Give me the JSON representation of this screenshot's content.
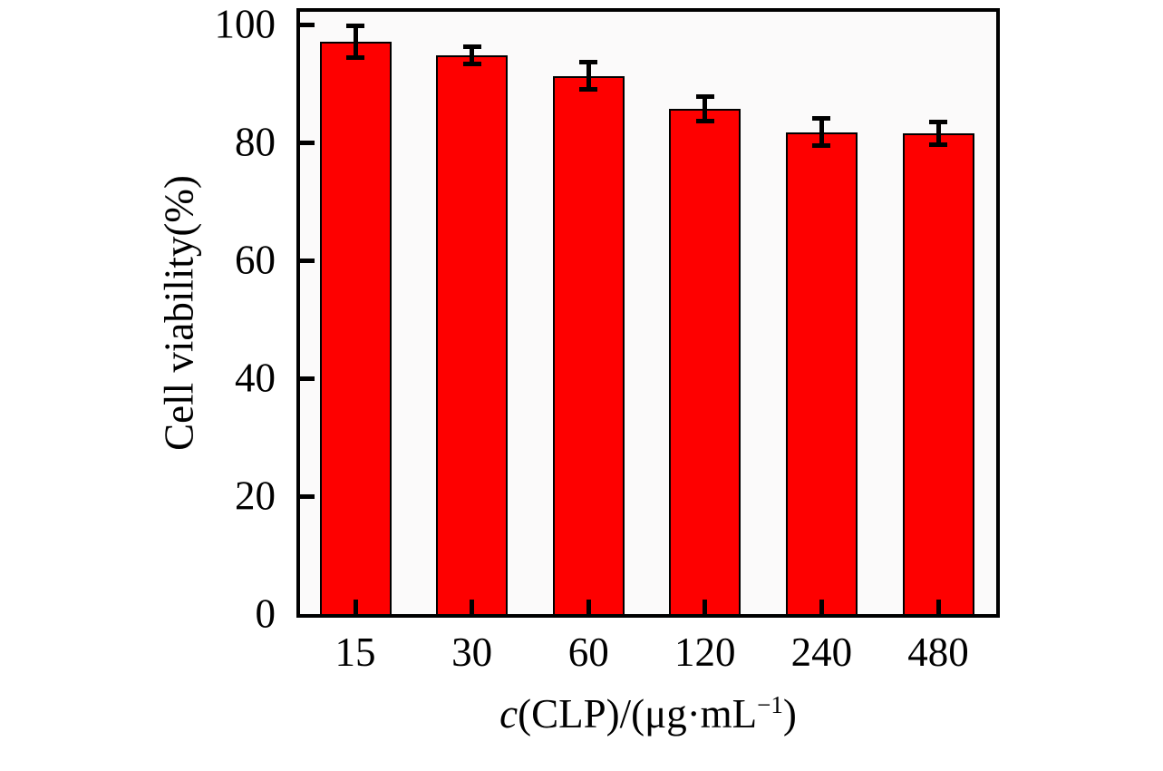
{
  "figure": {
    "background": "#ffffff"
  },
  "chart_data": {
    "type": "bar",
    "title": "",
    "ylabel": "Cell viability(%)",
    "xlabel_text": "c(CLP)/(μg·mL−1)",
    "xlabel_parts": {
      "var": "c",
      "mid": "(CLP)/(μg·mL",
      "sup": "−1",
      "close": ")"
    },
    "categories": [
      "15",
      "30",
      "60",
      "120",
      "240",
      "480"
    ],
    "values": [
      97.1,
      94.8,
      91.3,
      85.7,
      81.8,
      81.6
    ],
    "errors": [
      2.7,
      1.4,
      2.3,
      2.1,
      2.3,
      1.9
    ],
    "yticks": [
      0,
      20,
      40,
      60,
      80,
      100
    ],
    "ylim": [
      0,
      102.2
    ],
    "grid": false,
    "legend": null,
    "bar_color": "#fe0000",
    "bar_border_color": "#000000",
    "error_color": "#000000",
    "axis_color": "#000000",
    "plot_bg": "#fbfafa"
  }
}
